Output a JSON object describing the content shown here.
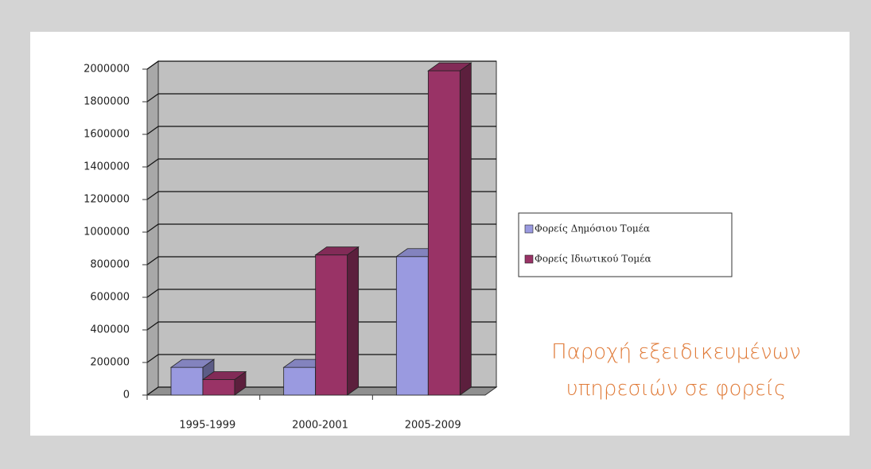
{
  "chart_data": {
    "type": "bar3d",
    "title": "Παροχή εξειδικευμένων υπηρεσιών σε φορείς",
    "categories": [
      "1995-1999",
      "2000-2001",
      "2005-2009"
    ],
    "series": [
      {
        "name": "Φορείς Δημόσιου Τομέα",
        "color": "#9a9ae0",
        "values": [
          170000,
          170000,
          850000
        ]
      },
      {
        "name": "Φορείς Ιδιωτικού Τομέα",
        "color": "#993366",
        "values": [
          95000,
          860000,
          1990000
        ]
      }
    ],
    "ylim": [
      0,
      2000000
    ],
    "yticks": [
      0,
      200000,
      400000,
      600000,
      800000,
      1000000,
      1200000,
      1400000,
      1600000,
      1800000,
      2000000
    ],
    "grid": true,
    "legend": "right"
  }
}
